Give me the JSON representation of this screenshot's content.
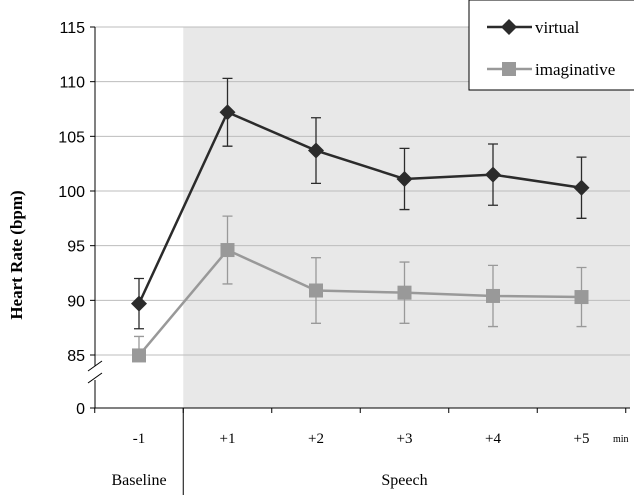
{
  "chart_data": {
    "type": "line",
    "title": "",
    "ylabel": "Heart Rate (bpm)",
    "xlabel": "",
    "x_unit": "min",
    "categories": [
      "-1",
      "+1",
      "+2",
      "+3",
      "+4",
      "+5"
    ],
    "groups": [
      {
        "label": "Baseline",
        "categories": [
          "-1"
        ],
        "shaded": false
      },
      {
        "label": "Speech",
        "categories": [
          "+1",
          "+2",
          "+3",
          "+4",
          "+5"
        ],
        "shaded": true
      }
    ],
    "y_axis_break": true,
    "y_break_below": 85,
    "y_ticks": [
      0,
      85,
      90,
      95,
      100,
      105,
      110,
      115
    ],
    "ylim": [
      85,
      115
    ],
    "grid": true,
    "legend_position": "top-right",
    "series": [
      {
        "name": "virtual",
        "color": "#2b2b2b",
        "marker": "diamond",
        "values": [
          89.7,
          107.2,
          103.7,
          101.1,
          101.5,
          100.3
        ],
        "error": [
          2.3,
          3.1,
          3.0,
          2.8,
          2.8,
          2.8
        ]
      },
      {
        "name": "imaginative",
        "color": "#999999",
        "marker": "square",
        "values": [
          84.3,
          94.6,
          90.9,
          90.7,
          90.4,
          90.3
        ],
        "error": [
          2.4,
          3.1,
          3.0,
          2.8,
          2.8,
          2.7
        ]
      }
    ]
  }
}
